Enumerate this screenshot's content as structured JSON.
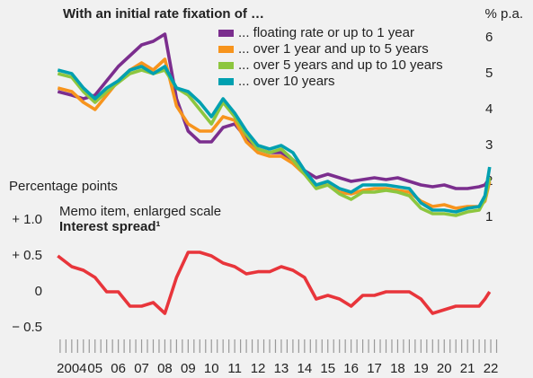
{
  "chart_data": [
    {
      "type": "line",
      "title": "With an initial rate fixation of …",
      "y_label": "% p.a.",
      "x": [
        2003.9,
        2004.5,
        2005,
        2005.5,
        2006,
        2006.5,
        2007,
        2007.5,
        2008,
        2008.5,
        2009,
        2009.5,
        2010,
        2010.5,
        2011,
        2011.5,
        2012,
        2012.5,
        2013,
        2013.5,
        2014,
        2014.5,
        2015,
        2015.5,
        2016,
        2016.5,
        2017,
        2017.5,
        2018,
        2018.5,
        2019,
        2019.5,
        2020,
        2020.5,
        2021,
        2021.5,
        2022,
        2022.25,
        2022.45
      ],
      "xlim": [
        2003.85,
        2023.0
      ],
      "ylim": [
        0.8,
        6.4
      ],
      "yticks": [
        1,
        2,
        3,
        4,
        5,
        6
      ],
      "series": [
        {
          "name": "... floating rate or up to 1 year",
          "color": "#7b2e8e",
          "values": [
            4.5,
            4.4,
            4.3,
            4.4,
            4.8,
            5.2,
            5.5,
            5.8,
            5.9,
            6.1,
            4.3,
            3.4,
            3.1,
            3.1,
            3.5,
            3.6,
            3.2,
            2.9,
            2.8,
            2.8,
            2.6,
            2.3,
            2.1,
            2.2,
            2.1,
            2.0,
            2.05,
            2.1,
            2.05,
            2.1,
            2.0,
            1.9,
            1.85,
            1.9,
            1.8,
            1.8,
            1.85,
            1.9,
            2.1
          ]
        },
        {
          "name": "... over 1 year and up to 5 years",
          "color": "#f7941d",
          "values": [
            4.6,
            4.5,
            4.2,
            4.0,
            4.4,
            4.8,
            5.1,
            5.3,
            5.1,
            5.4,
            4.1,
            3.6,
            3.4,
            3.4,
            3.8,
            3.7,
            3.1,
            2.8,
            2.7,
            2.7,
            2.5,
            2.2,
            1.9,
            1.9,
            1.7,
            1.65,
            1.75,
            1.8,
            1.8,
            1.75,
            1.7,
            1.45,
            1.3,
            1.35,
            1.25,
            1.3,
            1.3,
            1.45,
            2.0
          ]
        },
        {
          "name": "... over 5 years and up to 10 years",
          "color": "#8dc63f",
          "values": [
            5.0,
            4.9,
            4.5,
            4.2,
            4.5,
            4.75,
            5.0,
            5.1,
            5.0,
            5.1,
            4.6,
            4.4,
            4.0,
            3.6,
            4.2,
            3.8,
            3.3,
            2.9,
            2.8,
            2.9,
            2.6,
            2.2,
            1.8,
            1.9,
            1.65,
            1.5,
            1.7,
            1.7,
            1.75,
            1.7,
            1.6,
            1.25,
            1.1,
            1.1,
            1.05,
            1.15,
            1.2,
            1.5,
            2.1
          ]
        },
        {
          "name": "... over 10 years",
          "color": "#00a0b0",
          "values": [
            5.1,
            5.0,
            4.6,
            4.3,
            4.6,
            4.8,
            5.1,
            5.2,
            5.0,
            5.2,
            4.6,
            4.5,
            4.2,
            3.8,
            4.3,
            3.9,
            3.4,
            3.0,
            2.9,
            3.0,
            2.8,
            2.3,
            1.9,
            2.0,
            1.8,
            1.7,
            1.9,
            1.9,
            1.9,
            1.85,
            1.8,
            1.4,
            1.2,
            1.2,
            1.15,
            1.25,
            1.3,
            1.6,
            2.4
          ]
        }
      ]
    },
    {
      "type": "line",
      "y_label": "Percentage points",
      "subtitle": "Memo item, enlarged scale",
      "title": "Interest spread¹",
      "x": [
        2003.9,
        2004.5,
        2005,
        2005.5,
        2006,
        2006.5,
        2007,
        2007.5,
        2008,
        2008.5,
        2009,
        2009.5,
        2010,
        2010.5,
        2011,
        2011.5,
        2012,
        2012.5,
        2013,
        2013.5,
        2014,
        2014.5,
        2015,
        2015.5,
        2016,
        2016.5,
        2017,
        2017.5,
        2018,
        2018.5,
        2019,
        2019.5,
        2020,
        2020.5,
        2021,
        2021.5,
        2022,
        2022.25,
        2022.45
      ],
      "xlim": [
        2003.85,
        2023.0
      ],
      "xticks": [
        {
          "value": 2004.5,
          "label": "2004"
        },
        {
          "value": 2005.5,
          "label": "05"
        },
        {
          "value": 2006.5,
          "label": "06"
        },
        {
          "value": 2007.5,
          "label": "07"
        },
        {
          "value": 2008.5,
          "label": "08"
        },
        {
          "value": 2009.5,
          "label": "09"
        },
        {
          "value": 2010.5,
          "label": "10"
        },
        {
          "value": 2011.5,
          "label": "11"
        },
        {
          "value": 2012.5,
          "label": "12"
        },
        {
          "value": 2013.5,
          "label": "13"
        },
        {
          "value": 2014.5,
          "label": "14"
        },
        {
          "value": 2015.5,
          "label": "15"
        },
        {
          "value": 2016.5,
          "label": "16"
        },
        {
          "value": 2017.5,
          "label": "17"
        },
        {
          "value": 2018.5,
          "label": "18"
        },
        {
          "value": 2019.5,
          "label": "19"
        },
        {
          "value": 2020.5,
          "label": "20"
        },
        {
          "value": 2021.5,
          "label": "21"
        },
        {
          "value": 2022.5,
          "label": "22"
        }
      ],
      "ylim": [
        -0.7,
        1.2
      ],
      "yticks": [
        {
          "value": 1.0,
          "label": "+ 1.0"
        },
        {
          "value": 0.5,
          "label": "+ 0.5"
        },
        0,
        {
          "value": -0.5,
          "label": "− 0.5"
        }
      ],
      "color": "#e8353b",
      "values": [
        0.5,
        0.35,
        0.3,
        0.2,
        0.0,
        0.0,
        -0.2,
        -0.2,
        -0.15,
        -0.3,
        0.2,
        0.55,
        0.55,
        0.5,
        0.4,
        0.35,
        0.25,
        0.28,
        0.28,
        0.35,
        0.3,
        0.2,
        -0.1,
        -0.05,
        -0.1,
        -0.2,
        -0.05,
        -0.05,
        0.0,
        0.0,
        0.0,
        -0.1,
        -0.3,
        -0.25,
        -0.2,
        -0.2,
        -0.2,
        -0.1,
        0.0
      ]
    }
  ]
}
